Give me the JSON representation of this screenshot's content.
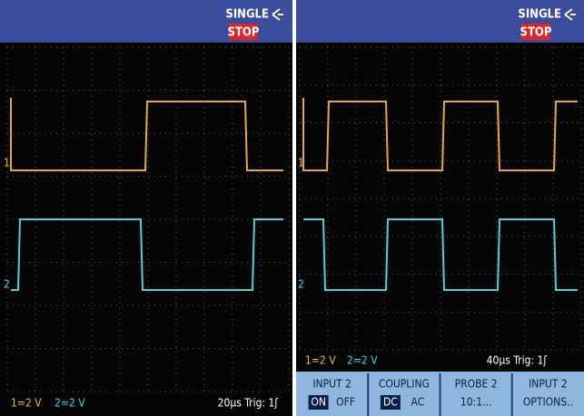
{
  "screens": [
    {
      "mode": "SINGLE",
      "status": "STOP",
      "ch1_scale": "1=2 V",
      "ch2_scale": "2=2 V",
      "timebase": "20µs Trig: 1ʃ"
    },
    {
      "mode": "SINGLE",
      "status": "STOP",
      "ch1_scale": "1=2 V",
      "ch2_scale": "2=2 V",
      "timebase": "40µs Trig: 1ʃ",
      "softkeys": [
        {
          "label": "INPUT 2",
          "options": [
            "ON",
            "OFF"
          ]
        },
        {
          "label": "COUPLING",
          "options": [
            "DC",
            "AC"
          ]
        },
        {
          "label": "PROBE 2",
          "options": [
            "10:1..."
          ]
        },
        {
          "label": "INPUT 2",
          "options": [
            "OPTIONS.."
          ]
        }
      ]
    }
  ]
}
